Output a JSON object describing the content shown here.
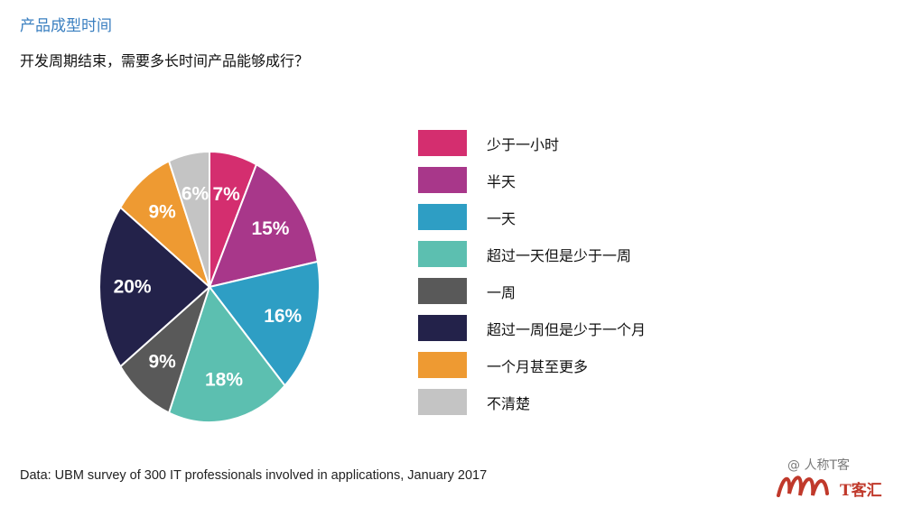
{
  "title": "产品成型时间",
  "subtitle": "开发周期结束，需要多长时间产品能够成行？",
  "chart_data": {
    "type": "pie",
    "slices": [
      {
        "label": "少于一小时",
        "value": 7,
        "display": "7%",
        "color": "#d42e6f"
      },
      {
        "label": "半天",
        "value": 15,
        "display": "15%",
        "color": "#a8378a"
      },
      {
        "label": "一天",
        "value": 16,
        "display": "16%",
        "color": "#2e9ec4"
      },
      {
        "label": "超过一天但是少于一周",
        "value": 18,
        "display": "18%",
        "color": "#5cbfb0"
      },
      {
        "label": "一周",
        "value": 9,
        "display": "9%",
        "color": "#595959"
      },
      {
        "label": "超过一周但是少于一个月",
        "value": 20,
        "display": "20%",
        "color": "#23224a"
      },
      {
        "label": "一个月甚至更多",
        "value": 9,
        "display": "9%",
        "color": "#ee9a32"
      },
      {
        "label": "不清楚",
        "value": 6,
        "display": "6%",
        "color": "#c4c4c4"
      }
    ],
    "start": "12 o'clock",
    "direction": "clockwise",
    "legend_position": "right"
  },
  "source_note": "Data: UBM survey of 300 IT professionals involved in applications, January 2017",
  "watermark": {
    "account": "@ 人称T客",
    "brand": "T客汇",
    "icon": "wechat-icon",
    "mark_color": "#c0392b"
  }
}
